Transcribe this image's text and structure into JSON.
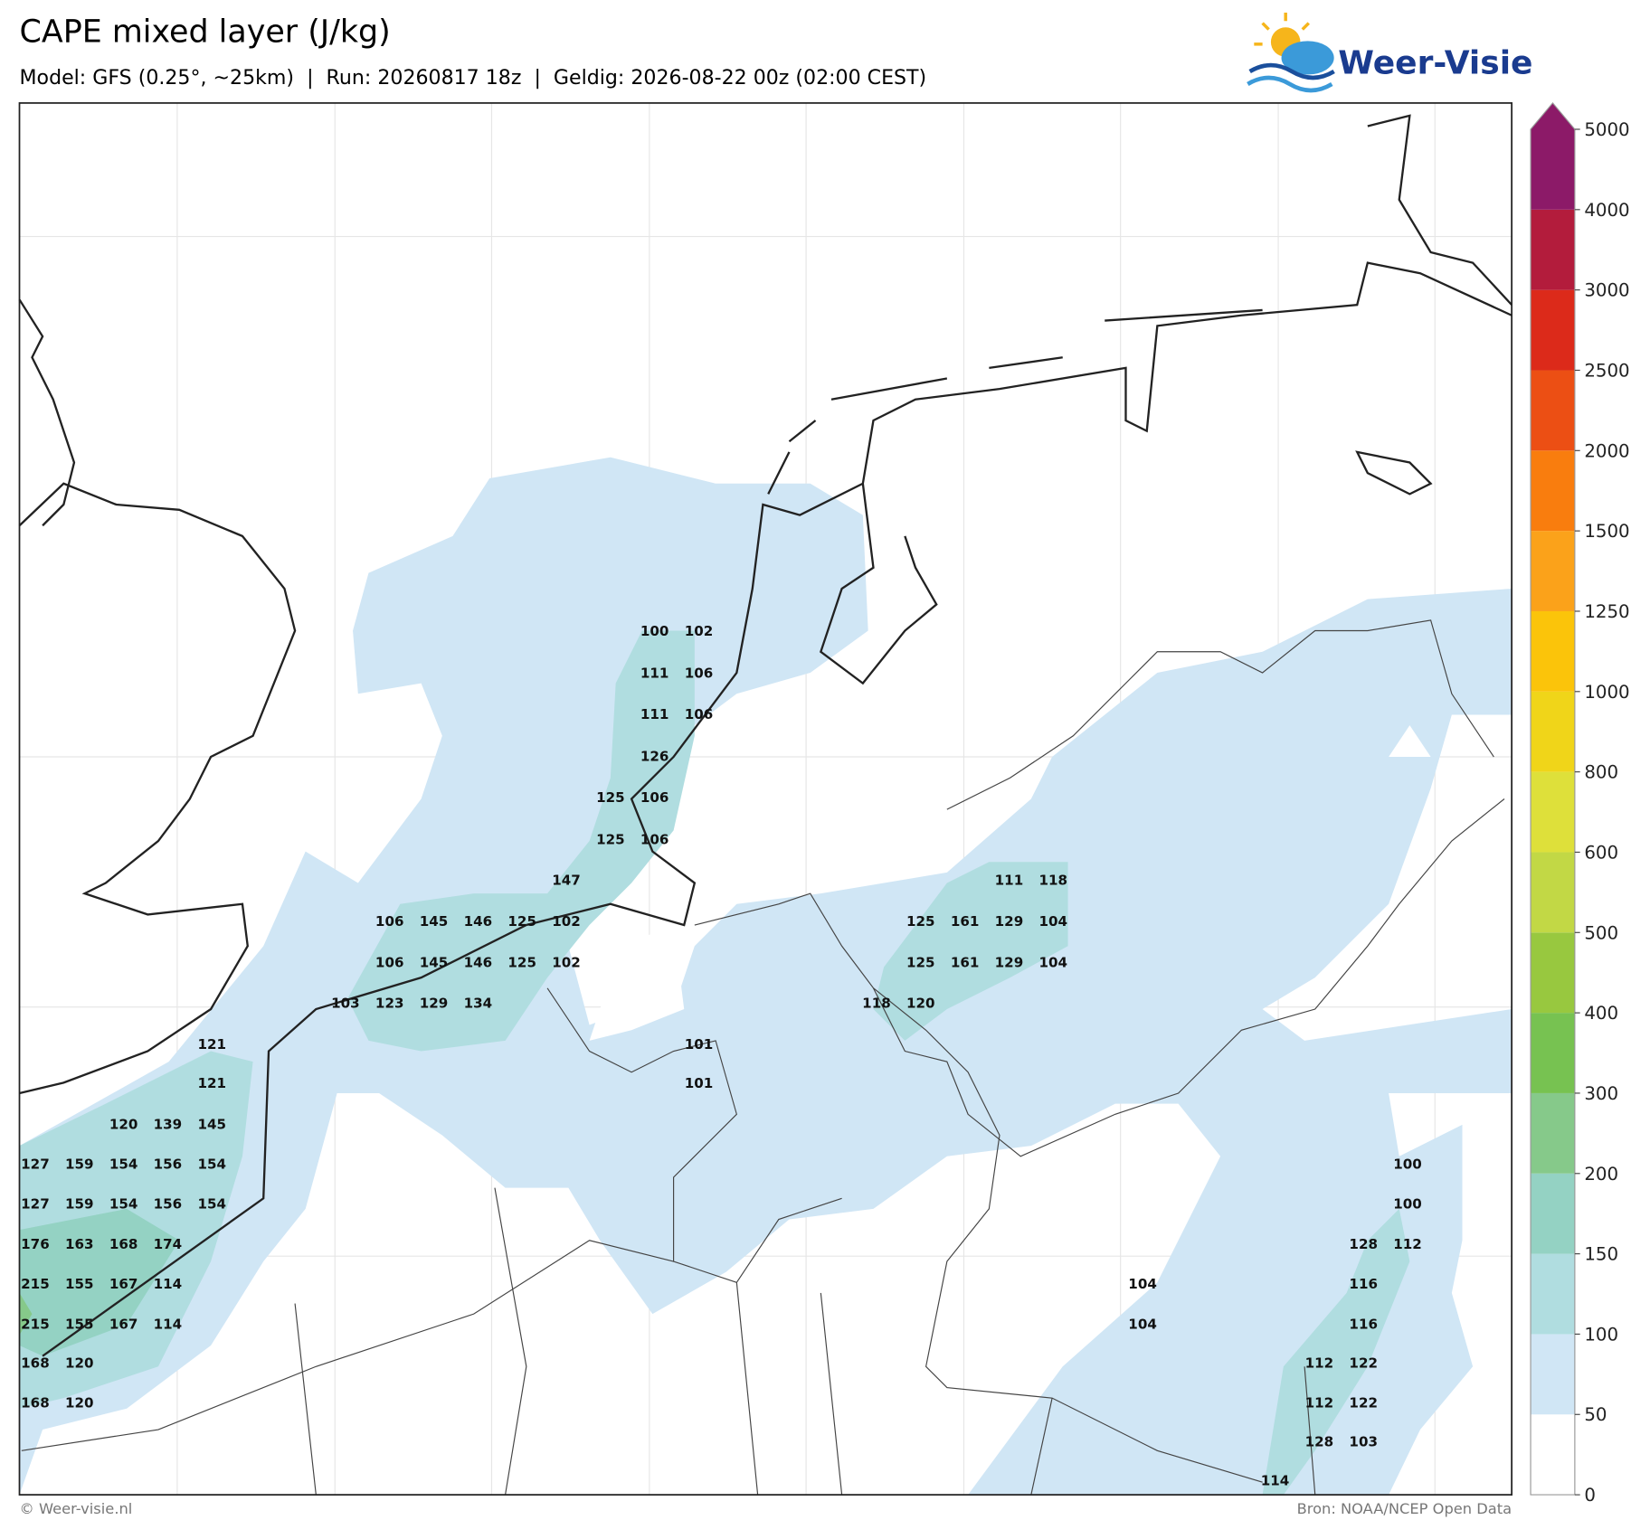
{
  "header": {
    "title": "CAPE mixed layer (J/kg)",
    "subtitle": "Model: GFS (0.25°, ~25km)  |  Run: 20260817 18z  |  Geldig: 2026-08-22 00z (02:00 CEST)",
    "logo": "Weer-Visie"
  },
  "map": {
    "labels": [
      100,
      102,
      111,
      106,
      111,
      106,
      126,
      125,
      106,
      125,
      106,
      147,
      111,
      118,
      106,
      145,
      146,
      125,
      102,
      125,
      161,
      129,
      104,
      106,
      145,
      146,
      125,
      102,
      125,
      161,
      129,
      104,
      103,
      123,
      129,
      134,
      118,
      120,
      121,
      101,
      121,
      101,
      120,
      139,
      145,
      127,
      159,
      154,
      156,
      154,
      100,
      127,
      159,
      154,
      156,
      154,
      100,
      176,
      163,
      168,
      174,
      128,
      112,
      215,
      155,
      167,
      114,
      104,
      116,
      215,
      155,
      167,
      114,
      104,
      116,
      168,
      120,
      112,
      122,
      168,
      120,
      112,
      122,
      128,
      103,
      114
    ]
  },
  "colorbar": {
    "levels": [
      0,
      50,
      100,
      150,
      200,
      300,
      400,
      500,
      600,
      800,
      1000,
      1250,
      1500,
      2000,
      2500,
      3000,
      4000,
      5000
    ],
    "colors": [
      "#ffffff",
      "#d0e6f5",
      "#b0dde0",
      "#94d2c3",
      "#86c98a",
      "#77c251",
      "#98c83f",
      "#c2d845",
      "#dee03a",
      "#f0d519",
      "#fbc40a",
      "#fba21a",
      "#f97d0e",
      "#ec4f14",
      "#dc2a1a",
      "#b31c3c",
      "#8c1a68"
    ],
    "extend_color": "#8c1a68"
  },
  "footer": {
    "left": "© Weer-visie.nl",
    "right": "Bron: NOAA/NCEP Open Data"
  }
}
